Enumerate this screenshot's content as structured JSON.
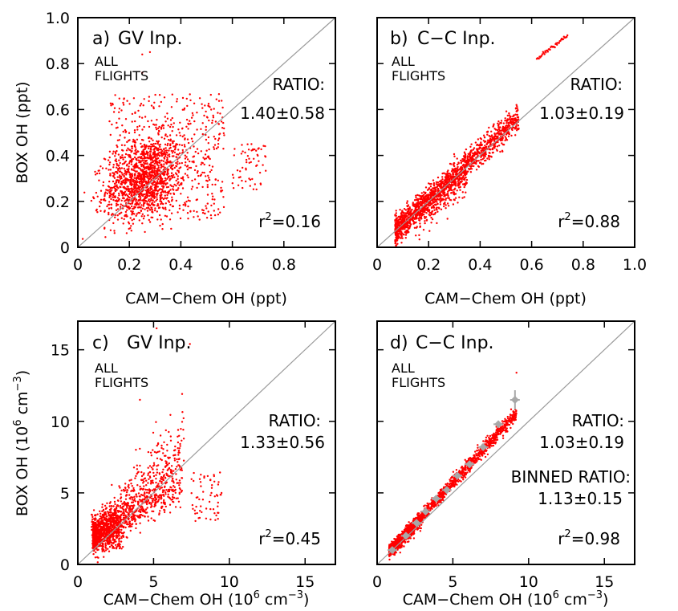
{
  "figure": {
    "panels": [
      {
        "panel_label": "a)",
        "input_label": "GV Inp.",
        "all_flights": [
          "ALL",
          "FLIGHTS"
        ],
        "ratio_label": "RATIO:",
        "ratio_value": "1.40±0.58",
        "r2_prefix": "r",
        "r2_sup": "2",
        "r2_value": "=0.16",
        "xlabel": "CAM−Chem OH (ppt)",
        "ylabel": "BOX OH (ppt)"
      },
      {
        "panel_label": "b)",
        "input_label": "C−C Inp.",
        "all_flights": [
          "ALL",
          "FLIGHTS"
        ],
        "ratio_label": "RATIO:",
        "ratio_value": "1.03±0.19",
        "r2_prefix": "r",
        "r2_sup": "2",
        "r2_value": "=0.88",
        "xlabel": "CAM−Chem OH (ppt)",
        "ylabel": ""
      },
      {
        "panel_label": "c)",
        "input_label": "GV Inp.",
        "all_flights": [
          "ALL",
          "FLIGHTS"
        ],
        "ratio_label": "RATIO:",
        "ratio_value": "1.33±0.56",
        "r2_prefix": "r",
        "r2_sup": "2",
        "r2_value": "=0.45",
        "xlabel_main": "CAM−Chem OH (10",
        "xlabel_exp": "6",
        "xlabel_mid": " cm",
        "xlabel_exp2": "−3",
        "xlabel_end": ")",
        "ylabel_main": "BOX OH (10",
        "ylabel_exp": "6",
        "ylabel_mid": " cm",
        "ylabel_exp2": "−3",
        "ylabel_end": ")"
      },
      {
        "panel_label": "d)",
        "input_label": "C−C Inp.",
        "all_flights": [
          "ALL",
          "FLIGHTS"
        ],
        "ratio_label": "RATIO:",
        "ratio_value": "1.03±0.19",
        "binned_label": "BINNED RATIO:",
        "binned_value": "1.13±0.15",
        "r2_prefix": "r",
        "r2_sup": "2",
        "r2_value": "=0.98",
        "xlabel_main": "CAM−Chem OH (10",
        "xlabel_exp": "6",
        "xlabel_mid": " cm",
        "xlabel_exp2": "−3",
        "xlabel_end": ")"
      }
    ]
  },
  "chart_data": [
    {
      "type": "scatter",
      "panel": "a",
      "xlim": [
        0,
        1.0
      ],
      "ylim": [
        0,
        1.0
      ],
      "xticks": [
        "0",
        "0.2",
        "0.4",
        "0.6",
        "0.8"
      ],
      "xtick_values": [
        0,
        0.2,
        0.4,
        0.6,
        0.8
      ],
      "yticks": [
        "0",
        "0.2",
        "0.4",
        "0.6",
        "0.8",
        "1.0"
      ],
      "ytick_values": [
        0,
        0.2,
        0.4,
        0.6,
        0.8,
        1.0
      ],
      "one_to_one_line": true,
      "point_color": "#ff0000",
      "cloud": {
        "x_center": 0.26,
        "y_center": 0.33,
        "ratio": 1.4,
        "r2": 0.16
      }
    },
    {
      "type": "scatter",
      "panel": "b",
      "xlim": [
        0,
        1.0
      ],
      "ylim": [
        0,
        1.0
      ],
      "xticks": [
        "0",
        "0.2",
        "0.4",
        "0.6",
        "0.8",
        "1.0"
      ],
      "xtick_values": [
        0,
        0.2,
        0.4,
        0.6,
        0.8,
        1.0
      ],
      "yticks": [],
      "ytick_values": [
        0,
        0.2,
        0.4,
        0.6,
        0.8,
        1.0
      ],
      "one_to_one_line": true,
      "point_color": "#ff0000",
      "cloud": {
        "x_range": [
          0.06,
          0.74
        ],
        "ratio": 1.03,
        "r2": 0.88
      }
    },
    {
      "type": "scatter",
      "panel": "c",
      "xlim": [
        0,
        17
      ],
      "ylim": [
        0,
        17
      ],
      "xticks": [
        "0",
        "5",
        "10",
        "15"
      ],
      "xtick_values": [
        0,
        5,
        10,
        15
      ],
      "yticks": [
        "0",
        "5",
        "10",
        "15"
      ],
      "ytick_values": [
        0,
        5,
        10,
        15
      ],
      "one_to_one_line": true,
      "point_color": "#ff0000",
      "cloud": {
        "x_center": 2.6,
        "y_center": 3.2,
        "ratio": 1.33,
        "r2": 0.45
      }
    },
    {
      "type": "scatter",
      "panel": "d",
      "xlim": [
        0,
        17
      ],
      "ylim": [
        0,
        17
      ],
      "xticks": [
        "0",
        "5",
        "10",
        "15"
      ],
      "xtick_values": [
        0,
        5,
        10,
        15
      ],
      "yticks": [],
      "ytick_values": [
        0,
        5,
        10,
        15
      ],
      "one_to_one_line": true,
      "point_color": "#ff0000",
      "binned_color": "#a8a8a8",
      "cloud": {
        "x_range": [
          0.8,
          9.2
        ],
        "ratio": 1.03,
        "r2": 0.98
      },
      "binned_points": [
        {
          "x": 1.0,
          "y": 1.0
        },
        {
          "x": 1.9,
          "y": 2.0
        },
        {
          "x": 2.6,
          "y": 2.9
        },
        {
          "x": 3.2,
          "y": 3.7
        },
        {
          "x": 3.9,
          "y": 4.6
        },
        {
          "x": 4.6,
          "y": 5.2
        },
        {
          "x": 5.3,
          "y": 6.2
        },
        {
          "x": 6.1,
          "y": 7.0
        },
        {
          "x": 7.0,
          "y": 8.2
        },
        {
          "x": 8.0,
          "y": 9.8
        },
        {
          "x": 9.1,
          "y": 11.5
        }
      ]
    }
  ]
}
